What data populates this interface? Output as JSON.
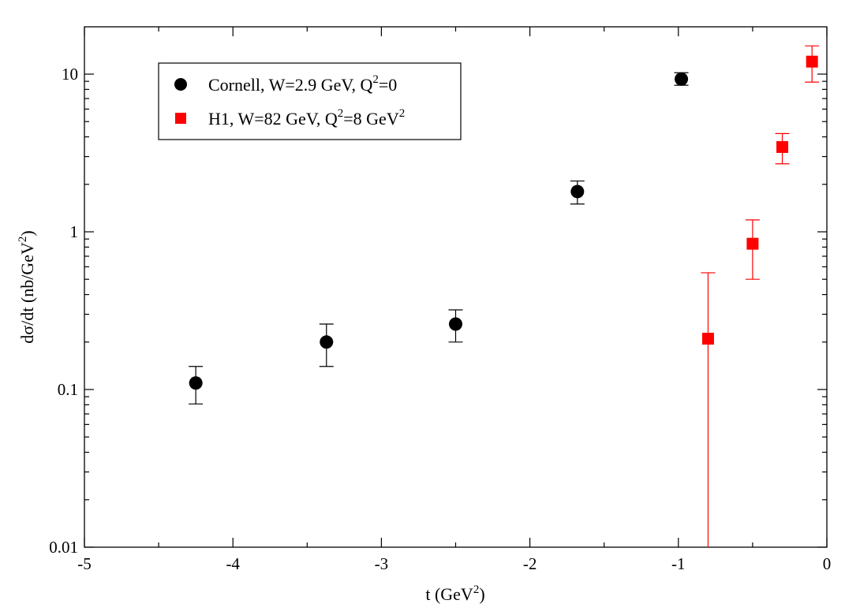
{
  "chart_data": {
    "type": "scatter",
    "xlabel": {
      "text": "t (GeV",
      "sup": "2",
      "tail": ")"
    },
    "ylabel": {
      "text": "dσ/dt  (nb/GeV",
      "sup": "2",
      "tail": ")"
    },
    "xlim": [
      -5,
      0
    ],
    "ylim": [
      0.01,
      20
    ],
    "yscale": "log",
    "grid": false,
    "legend_position": "top-left",
    "x_ticks": [
      -5,
      -4,
      -3,
      -2,
      -1,
      0
    ],
    "x_tick_labels": [
      "-5",
      "-4",
      "-3",
      "-2",
      "-1",
      "0"
    ],
    "y_ticks": [
      0.01,
      0.1,
      1,
      10
    ],
    "y_tick_labels": [
      "0.01",
      "0.1",
      "1",
      "10"
    ],
    "series": [
      {
        "name": "Cornell,  W=2.9 GeV, Q",
        "name_sup": "2",
        "name_tail": "=0",
        "marker": "circle",
        "color": "#000000",
        "points": [
          {
            "x": -4.25,
            "y": 0.11,
            "ylo": 0.081,
            "yhi": 0.14
          },
          {
            "x": -3.37,
            "y": 0.2,
            "ylo": 0.14,
            "yhi": 0.26
          },
          {
            "x": -2.5,
            "y": 0.26,
            "ylo": 0.2,
            "yhi": 0.32
          },
          {
            "x": -1.68,
            "y": 1.8,
            "ylo": 1.5,
            "yhi": 2.1
          },
          {
            "x": -0.98,
            "y": 9.3,
            "ylo": 8.5,
            "yhi": 10.2
          }
        ]
      },
      {
        "name": "H1,  W=82 GeV, Q",
        "name_sup": "2",
        "name_tail": "=8 GeV",
        "name_sup2": "2",
        "marker": "square",
        "color": "#ff0000",
        "points": [
          {
            "x": -0.8,
            "y": 0.21,
            "ylo": 0.0001,
            "yhi": 0.55
          },
          {
            "x": -0.5,
            "y": 0.84,
            "ylo": 0.5,
            "yhi": 1.19
          },
          {
            "x": -0.3,
            "y": 3.45,
            "ylo": 2.7,
            "yhi": 4.2
          },
          {
            "x": -0.1,
            "y": 12.0,
            "ylo": 8.9,
            "yhi": 15.1
          }
        ]
      }
    ]
  }
}
